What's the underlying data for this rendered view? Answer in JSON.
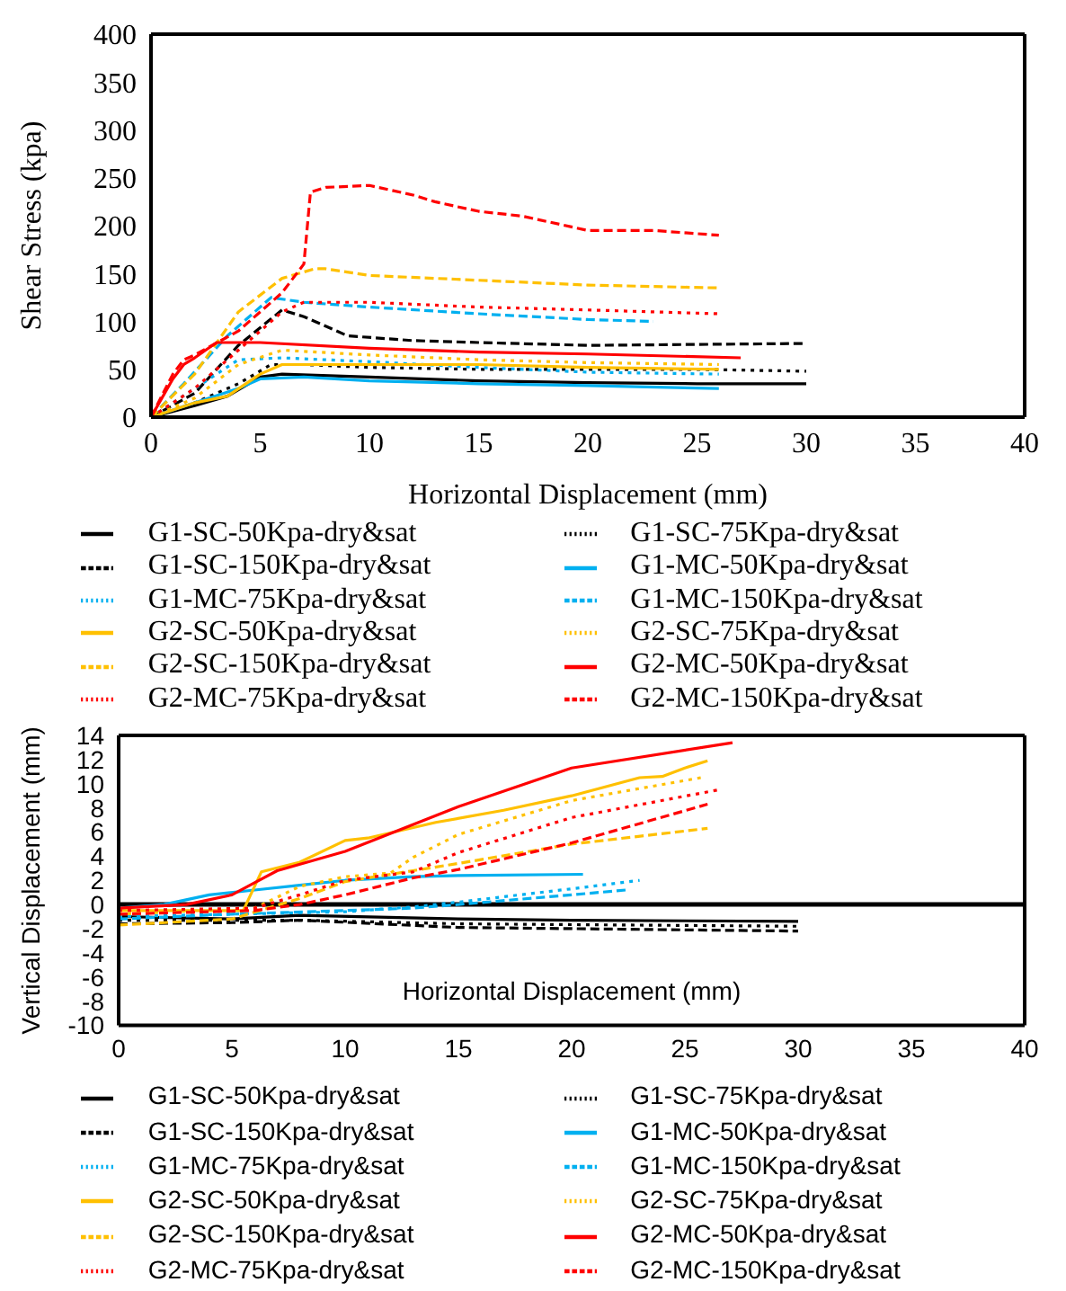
{
  "chart_data": [
    {
      "type": "line",
      "xlabel": "Horizontal Displacement (mm)",
      "ylabel": "Shear Stress (kpa)",
      "xlim": [
        0,
        40
      ],
      "xticks": [
        0,
        5,
        10,
        15,
        20,
        25,
        30,
        35,
        40
      ],
      "ylim": [
        0,
        400
      ],
      "yticks": [
        0,
        50,
        100,
        150,
        200,
        250,
        300,
        350,
        400
      ],
      "legend": "bottom",
      "series": [
        {
          "name": "G1-SC-50Kpa-dry&sat",
          "color": "#000000",
          "line_style": "solid",
          "x": [
            0,
            2,
            3.5,
            5,
            6,
            10,
            15,
            20,
            25,
            30
          ],
          "values": [
            0,
            12,
            22,
            42,
            45,
            42,
            38,
            36,
            35,
            35
          ]
        },
        {
          "name": "G1-SC-75Kpa-dry&sat",
          "color": "#000000",
          "line_style": "dotted",
          "x": [
            0,
            2,
            4,
            5.5,
            7,
            10,
            15,
            20,
            25,
            30
          ],
          "values": [
            0,
            15,
            35,
            55,
            55,
            52,
            50,
            50,
            50,
            48
          ]
        },
        {
          "name": "G1-SC-150Kpa-dry&sat",
          "color": "#000000",
          "line_style": "dashed",
          "x": [
            0,
            2,
            4,
            6,
            7,
            9,
            12,
            15,
            20,
            25,
            30
          ],
          "values": [
            0,
            25,
            75,
            112,
            105,
            85,
            80,
            78,
            75,
            76,
            77
          ]
        },
        {
          "name": "G1-MC-50Kpa-dry&sat",
          "color": "#00b0f0",
          "line_style": "solid",
          "x": [
            0,
            2,
            4,
            5,
            7,
            10,
            15,
            20,
            26
          ],
          "values": [
            0,
            15,
            30,
            40,
            42,
            38,
            35,
            33,
            30
          ]
        },
        {
          "name": "G1-MC-75Kpa-dry&sat",
          "color": "#00b0f0",
          "line_style": "dotted",
          "x": [
            0,
            2,
            4,
            6,
            10,
            15,
            20,
            26
          ],
          "values": [
            0,
            30,
            60,
            62,
            58,
            52,
            47,
            45
          ]
        },
        {
          "name": "G1-MC-150Kpa-dry&sat",
          "color": "#00b0f0",
          "line_style": "dashed",
          "x": [
            0,
            1.5,
            3.5,
            5.5,
            7,
            10,
            15,
            20,
            23
          ],
          "values": [
            0,
            35,
            85,
            125,
            120,
            115,
            108,
            102,
            100
          ]
        },
        {
          "name": "G2-SC-50Kpa-dry&sat",
          "color": "#ffc000",
          "line_style": "solid",
          "x": [
            0,
            2,
            3.5,
            5,
            6,
            10,
            15,
            20,
            26
          ],
          "values": [
            0,
            15,
            22,
            45,
            55,
            55,
            55,
            52,
            50
          ]
        },
        {
          "name": "G2-SC-75Kpa-dry&sat",
          "color": "#ffc000",
          "line_style": "dotted",
          "x": [
            0,
            2,
            4,
            6,
            10,
            15,
            20,
            26
          ],
          "values": [
            0,
            20,
            55,
            70,
            65,
            60,
            57,
            55
          ]
        },
        {
          "name": "G2-SC-150Kpa-dry&sat",
          "color": "#ffc000",
          "line_style": "dashed",
          "x": [
            0,
            2,
            4,
            6,
            7.5,
            8,
            10,
            15,
            20,
            26
          ],
          "values": [
            0,
            45,
            110,
            145,
            155,
            155,
            148,
            143,
            138,
            135
          ]
        },
        {
          "name": "G2-MC-50Kpa-dry&sat",
          "color": "#ff0000",
          "line_style": "solid",
          "x": [
            0,
            1,
            1.5,
            2,
            3,
            5,
            10,
            15,
            20,
            27
          ],
          "values": [
            0,
            40,
            55,
            62,
            78,
            78,
            72,
            68,
            66,
            62
          ]
        },
        {
          "name": "G2-MC-75Kpa-dry&sat",
          "color": "#ff0000",
          "line_style": "dotted",
          "x": [
            0,
            2,
            4,
            6,
            7,
            10,
            15,
            20,
            26
          ],
          "values": [
            0,
            30,
            70,
            110,
            120,
            120,
            115,
            112,
            108
          ]
        },
        {
          "name": "G2-MC-150Kpa-dry&sat",
          "color": "#ff0000",
          "line_style": "dashed",
          "x": [
            0,
            1,
            1.5,
            2,
            4,
            6,
            7,
            7.3,
            8,
            10,
            12,
            13,
            15,
            17,
            20,
            23,
            26
          ],
          "values": [
            0,
            45,
            60,
            65,
            90,
            130,
            160,
            235,
            240,
            242,
            232,
            225,
            215,
            210,
            195,
            195,
            190
          ]
        }
      ]
    },
    {
      "type": "line",
      "xlabel": "Horizontal Displacement (mm)",
      "ylabel": "Vertical Displacement (mm)",
      "xlim": [
        0,
        40
      ],
      "xticks": [
        0,
        5,
        10,
        15,
        20,
        25,
        30,
        35,
        40
      ],
      "ylim": [
        -10,
        14
      ],
      "yticks": [
        -10,
        -8,
        -6,
        -4,
        -2,
        0,
        2,
        4,
        6,
        8,
        10,
        12,
        14
      ],
      "legend": "bottom",
      "series": [
        {
          "name": "G1-SC-50Kpa-dry&sat",
          "color": "#000000",
          "line_style": "solid",
          "x": [
            0,
            5,
            8,
            15,
            20,
            30
          ],
          "values": [
            -1.0,
            -1.2,
            -0.9,
            -1.2,
            -1.3,
            -1.4
          ]
        },
        {
          "name": "G1-SC-75Kpa-dry&sat",
          "color": "#000000",
          "line_style": "dotted",
          "x": [
            0,
            8,
            15,
            30
          ],
          "values": [
            -1.3,
            -1.3,
            -1.6,
            -1.8
          ]
        },
        {
          "name": "G1-SC-150Kpa-dry&sat",
          "color": "#000000",
          "line_style": "dashed",
          "x": [
            0,
            5,
            8,
            15,
            20,
            30
          ],
          "values": [
            -1.6,
            -1.5,
            -1.3,
            -1.9,
            -2.0,
            -2.2
          ]
        },
        {
          "name": "G1-MC-50Kpa-dry&sat",
          "color": "#00b0f0",
          "line_style": "solid",
          "x": [
            0,
            2,
            4,
            6,
            8,
            10,
            13,
            15,
            20.5
          ],
          "values": [
            -0.3,
            0,
            0.8,
            1.2,
            1.6,
            2.0,
            2.3,
            2.4,
            2.5
          ]
        },
        {
          "name": "G1-MC-75Kpa-dry&sat",
          "color": "#00b0f0",
          "line_style": "dotted",
          "x": [
            0,
            5,
            10,
            13,
            15,
            20,
            23
          ],
          "values": [
            -1.0,
            -0.8,
            -0.6,
            -0.2,
            0.2,
            1.3,
            2.0
          ]
        },
        {
          "name": "G1-MC-150Kpa-dry&sat",
          "color": "#00b0f0",
          "line_style": "dashed",
          "x": [
            0,
            5,
            10,
            13,
            15,
            20,
            22.4
          ],
          "values": [
            -1.2,
            -0.8,
            -0.5,
            -0.3,
            0,
            0.8,
            1.2
          ]
        },
        {
          "name": "G2-SC-50Kpa-dry&sat",
          "color": "#ffc000",
          "line_style": "solid",
          "x": [
            0,
            5.5,
            6.3,
            8,
            10,
            11,
            14,
            17,
            20,
            23,
            24,
            25,
            26
          ],
          "values": [
            -0.5,
            -0.5,
            2.7,
            3.5,
            5.3,
            5.5,
            6.8,
            7.8,
            9.0,
            10.5,
            10.6,
            11.3,
            11.9
          ]
        },
        {
          "name": "G2-SC-75Kpa-dry&sat",
          "color": "#ffc000",
          "line_style": "dotted",
          "x": [
            0,
            6,
            8,
            10,
            12,
            13,
            15,
            20,
            25.7
          ],
          "values": [
            -0.8,
            -0.3,
            1.5,
            2.3,
            2.6,
            3.9,
            5.8,
            8.6,
            10.5
          ]
        },
        {
          "name": "G2-SC-150Kpa-dry&sat",
          "color": "#ffc000",
          "line_style": "dashed",
          "x": [
            0,
            5,
            8,
            10,
            15,
            20,
            26
          ],
          "values": [
            -1.7,
            -1.2,
            0.5,
            1.9,
            3.4,
            5.0,
            6.3
          ]
        },
        {
          "name": "G2-MC-50Kpa-dry&sat",
          "color": "#ff0000",
          "line_style": "solid",
          "x": [
            0,
            3,
            5,
            6,
            7,
            10,
            15,
            20,
            27.1
          ],
          "values": [
            -0.3,
            0,
            0.8,
            1.8,
            2.8,
            4.4,
            8.1,
            11.3,
            13.4
          ]
        },
        {
          "name": "G2-MC-75Kpa-dry&sat",
          "color": "#ff0000",
          "line_style": "dotted",
          "x": [
            0,
            6,
            8,
            10,
            13,
            15,
            20,
            26.5
          ],
          "values": [
            -0.5,
            -0.3,
            0.8,
            2.0,
            2.7,
            4.3,
            7.2,
            9.5
          ]
        },
        {
          "name": "G2-MC-150Kpa-dry&sat",
          "color": "#ff0000",
          "line_style": "dashed",
          "x": [
            0,
            6,
            8,
            10,
            13,
            15,
            20,
            26
          ],
          "values": [
            -0.8,
            -0.5,
            0,
            0.8,
            2.2,
            2.9,
            5.1,
            8.3
          ]
        }
      ]
    }
  ]
}
